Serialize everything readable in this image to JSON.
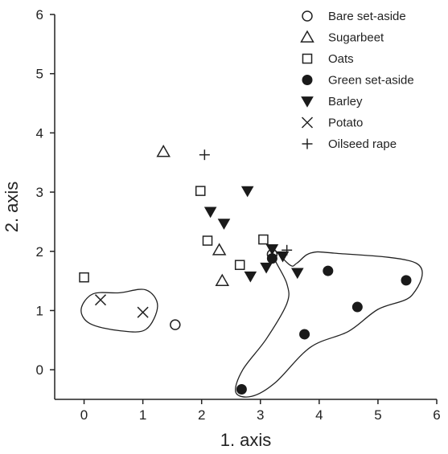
{
  "chart_data": {
    "type": "scatter",
    "xlabel": "1. axis",
    "ylabel": "2. axis",
    "xlim": [
      -0.5,
      6
    ],
    "ylim": [
      -0.5,
      6
    ],
    "xticks": [
      0,
      1,
      2,
      3,
      4,
      5,
      6
    ],
    "yticks": [
      0,
      1,
      2,
      3,
      4,
      5,
      6
    ],
    "grid": false,
    "legend_position": "top-right",
    "series": [
      {
        "name": "Bare set-aside",
        "marker": "circle-open",
        "points": [
          [
            1.55,
            0.76
          ],
          [
            3.2,
            1.95
          ]
        ]
      },
      {
        "name": "Sugarbeet",
        "marker": "triangle-open",
        "points": [
          [
            1.35,
            3.68
          ],
          [
            2.3,
            2.02
          ],
          [
            2.35,
            1.5
          ]
        ]
      },
      {
        "name": "Oats",
        "marker": "square-open",
        "points": [
          [
            0.0,
            1.56
          ],
          [
            1.98,
            3.02
          ],
          [
            2.1,
            2.18
          ],
          [
            2.65,
            1.77
          ],
          [
            3.05,
            2.2
          ]
        ]
      },
      {
        "name": "Green set-aside",
        "marker": "circle-filled",
        "points": [
          [
            2.68,
            -0.33
          ],
          [
            3.2,
            1.88
          ],
          [
            3.75,
            0.6
          ],
          [
            4.15,
            1.67
          ],
          [
            4.65,
            1.06
          ],
          [
            5.48,
            1.51
          ]
        ]
      },
      {
        "name": "Barley",
        "marker": "triangle-down-filled",
        "points": [
          [
            2.78,
            3.02
          ],
          [
            2.15,
            2.67
          ],
          [
            2.38,
            2.47
          ],
          [
            3.2,
            2.04
          ],
          [
            3.38,
            1.92
          ],
          [
            3.1,
            1.73
          ],
          [
            2.83,
            1.58
          ],
          [
            3.63,
            1.64
          ]
        ]
      },
      {
        "name": "Potato",
        "marker": "x",
        "points": [
          [
            0.28,
            1.18
          ],
          [
            1.0,
            0.97
          ]
        ]
      },
      {
        "name": "Oilseed rape",
        "marker": "plus",
        "points": [
          [
            2.05,
            3.63
          ],
          [
            3.45,
            2.02
          ]
        ]
      }
    ],
    "annotations": [
      {
        "shape": "outline",
        "path": [
          [
            0.6,
            1.3
          ],
          [
            1.05,
            1.35
          ],
          [
            1.25,
            1.08
          ],
          [
            1.05,
            0.68
          ],
          [
            0.6,
            0.66
          ],
          [
            0.1,
            0.78
          ],
          [
            -0.05,
            1.02
          ],
          [
            0.15,
            1.28
          ]
        ]
      },
      {
        "shape": "outline",
        "path": [
          [
            3.18,
            2.08
          ],
          [
            3.5,
            1.77
          ],
          [
            3.62,
            1.8
          ],
          [
            3.85,
            1.97
          ],
          [
            4.25,
            1.97
          ],
          [
            5.65,
            1.8
          ],
          [
            5.58,
            1.26
          ],
          [
            5.0,
            1.02
          ],
          [
            4.5,
            0.65
          ],
          [
            3.85,
            0.38
          ],
          [
            3.25,
            -0.22
          ],
          [
            2.85,
            -0.45
          ],
          [
            2.58,
            -0.38
          ],
          [
            2.7,
            0.0
          ],
          [
            3.1,
            0.52
          ],
          [
            3.45,
            1.12
          ],
          [
            3.45,
            1.45
          ],
          [
            3.25,
            1.85
          ]
        ]
      }
    ]
  }
}
